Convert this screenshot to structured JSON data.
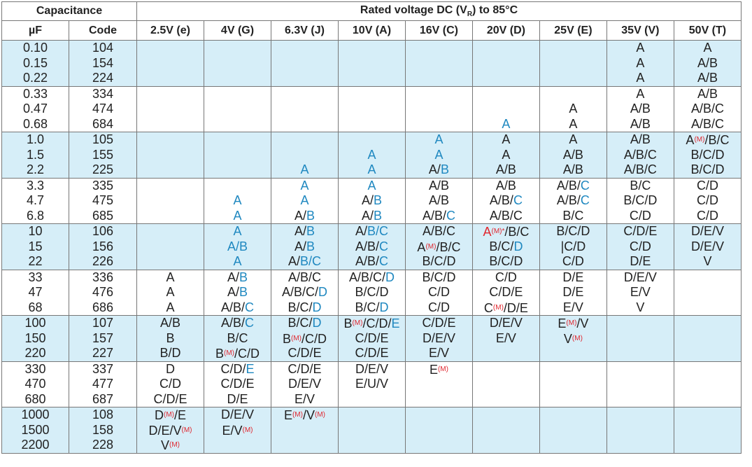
{
  "header": {
    "capacitance": "Capacitance",
    "rated": "Rated voltage DC (V",
    "rated_sub": "R",
    "rated_tail": ") to 85°C",
    "uf": "µF",
    "code": "Code",
    "voltages": [
      "2.5V (e)",
      "4V (G)",
      "6.3V (J)",
      "10V (A)",
      "16V (C)",
      "20V (D)",
      "25V (E)",
      "35V (V)",
      "50V (T)"
    ]
  },
  "colors": {
    "blue_text": "#1f88c0",
    "red_text": "#e0262e",
    "row_shade": "#d6eef8"
  },
  "groups": [
    {
      "shade": "blue",
      "uf": [
        "0.10",
        "0.15",
        "0.22"
      ],
      "code": [
        "104",
        "154",
        "224"
      ],
      "cells": [
        [],
        [],
        [],
        [],
        [],
        [],
        [],
        [
          [
            {
              "t": "A"
            }
          ],
          [
            {
              "t": "A"
            }
          ],
          [
            {
              "t": "A"
            }
          ]
        ],
        [
          [
            {
              "t": "A"
            }
          ],
          [
            {
              "t": "A/B"
            }
          ],
          [
            {
              "t": "A/B"
            }
          ]
        ]
      ]
    },
    {
      "shade": "white",
      "uf": [
        "0.33",
        "0.47",
        "0.68"
      ],
      "code": [
        "334",
        "474",
        "684"
      ],
      "cells": [
        [],
        [],
        [],
        [],
        [],
        [
          [],
          [],
          [
            {
              "t": "A",
              "c": "b"
            }
          ]
        ],
        [
          [],
          [
            {
              "t": "A"
            }
          ],
          [
            {
              "t": "A"
            }
          ]
        ],
        [
          [
            {
              "t": "A"
            }
          ],
          [
            {
              "t": "A/B"
            }
          ],
          [
            {
              "t": "A/B"
            }
          ]
        ],
        [
          [
            {
              "t": "A/B"
            }
          ],
          [
            {
              "t": "A/B/C"
            }
          ],
          [
            {
              "t": "A/B/C"
            }
          ]
        ]
      ]
    },
    {
      "shade": "blue",
      "uf": [
        "1.0",
        "1.5",
        "2.2"
      ],
      "code": [
        "105",
        "155",
        "225"
      ],
      "cells": [
        [],
        [],
        [
          [],
          [],
          [
            {
              "t": "A",
              "c": "b"
            }
          ]
        ],
        [
          [],
          [
            {
              "t": "A",
              "c": "b"
            }
          ],
          [
            {
              "t": "A",
              "c": "b"
            }
          ]
        ],
        [
          [
            {
              "t": "A",
              "c": "b"
            }
          ],
          [
            {
              "t": "A",
              "c": "b"
            }
          ],
          [
            {
              "t": "A/"
            },
            {
              "t": "B",
              "c": "b"
            }
          ]
        ],
        [
          [
            {
              "t": "A"
            }
          ],
          [
            {
              "t": "A"
            }
          ],
          [
            {
              "t": "A/B"
            }
          ]
        ],
        [
          [
            {
              "t": "A"
            }
          ],
          [
            {
              "t": "A/B"
            }
          ],
          [
            {
              "t": "A/B"
            }
          ]
        ],
        [
          [
            {
              "t": "A/B"
            }
          ],
          [
            {
              "t": "A/B/C"
            }
          ],
          [
            {
              "t": "A/B/C"
            }
          ]
        ],
        [
          [
            {
              "t": "A"
            },
            {
              "t": "(M)",
              "c": "m"
            },
            {
              "t": "/B/C"
            }
          ],
          [
            {
              "t": "B/C/D"
            }
          ],
          [
            {
              "t": "B/C/D"
            }
          ]
        ]
      ]
    },
    {
      "shade": "white",
      "uf": [
        "3.3",
        "4.7",
        "6.8"
      ],
      "code": [
        "335",
        "475",
        "685"
      ],
      "cells": [
        [],
        [
          [],
          [
            {
              "t": "A",
              "c": "b"
            }
          ],
          [
            {
              "t": "A",
              "c": "b"
            }
          ]
        ],
        [
          [
            {
              "t": "A",
              "c": "b"
            }
          ],
          [
            {
              "t": "A",
              "c": "b"
            }
          ],
          [
            {
              "t": "A/"
            },
            {
              "t": "B",
              "c": "b"
            }
          ]
        ],
        [
          [
            {
              "t": "A",
              "c": "b"
            }
          ],
          [
            {
              "t": "A/"
            },
            {
              "t": "B",
              "c": "b"
            }
          ],
          [
            {
              "t": "A/"
            },
            {
              "t": "B",
              "c": "b"
            }
          ]
        ],
        [
          [
            {
              "t": "A/B"
            }
          ],
          [
            {
              "t": "A/B"
            }
          ],
          [
            {
              "t": "A/B/"
            },
            {
              "t": "C",
              "c": "b"
            }
          ]
        ],
        [
          [
            {
              "t": "A/B"
            }
          ],
          [
            {
              "t": "A/B/"
            },
            {
              "t": "C",
              "c": "b"
            }
          ],
          [
            {
              "t": "A/B/C"
            }
          ]
        ],
        [
          [
            {
              "t": "A/B/"
            },
            {
              "t": "C",
              "c": "b"
            }
          ],
          [
            {
              "t": "A/B/"
            },
            {
              "t": "C",
              "c": "b"
            }
          ],
          [
            {
              "t": "B/C"
            }
          ]
        ],
        [
          [
            {
              "t": "B/C"
            }
          ],
          [
            {
              "t": "B/C/D"
            }
          ],
          [
            {
              "t": "C/D"
            }
          ]
        ],
        [
          [
            {
              "t": "C/D"
            }
          ],
          [
            {
              "t": "C/D"
            }
          ],
          [
            {
              "t": "C/D"
            }
          ]
        ]
      ]
    },
    {
      "shade": "blue",
      "uf": [
        "10",
        "15",
        "22"
      ],
      "code": [
        "106",
        "156",
        "226"
      ],
      "cells": [
        [],
        [
          [
            {
              "t": "A",
              "c": "b"
            }
          ],
          [
            {
              "t": "A/B",
              "c": "b"
            }
          ],
          [
            {
              "t": "A",
              "c": "b"
            }
          ]
        ],
        [
          [
            {
              "t": "A/"
            },
            {
              "t": "B",
              "c": "b"
            }
          ],
          [
            {
              "t": "A/"
            },
            {
              "t": "B",
              "c": "b"
            }
          ],
          [
            {
              "t": "A/"
            },
            {
              "t": "B/C",
              "c": "b"
            }
          ]
        ],
        [
          [
            {
              "t": "A/"
            },
            {
              "t": "B/C",
              "c": "b"
            }
          ],
          [
            {
              "t": "A/B/"
            },
            {
              "t": "C",
              "c": "b"
            }
          ],
          [
            {
              "t": "A/B/"
            },
            {
              "t": "C",
              "c": "b"
            }
          ]
        ],
        [
          [
            {
              "t": "A/B/C"
            }
          ],
          [
            {
              "t": "A"
            },
            {
              "t": "(M)",
              "c": "m"
            },
            {
              "t": "/B/C"
            }
          ],
          [
            {
              "t": "B/C/D"
            }
          ]
        ],
        [
          [
            {
              "t": "A",
              "c": "mc"
            },
            {
              "t": "(M)*",
              "c": "m"
            },
            {
              "t": "/B/C"
            }
          ],
          [
            {
              "t": "B/C/"
            },
            {
              "t": "D",
              "c": "b"
            }
          ],
          [
            {
              "t": "B/C/D"
            }
          ]
        ],
        [
          [
            {
              "t": "B/C/D"
            }
          ],
          [
            {
              "t": "|C/D"
            }
          ],
          [
            {
              "t": "C/D"
            }
          ]
        ],
        [
          [
            {
              "t": "C/D/E"
            }
          ],
          [
            {
              "t": "C/D"
            }
          ],
          [
            {
              "t": "D/E"
            }
          ]
        ],
        [
          [
            {
              "t": "D/E/V"
            }
          ],
          [
            {
              "t": "D/E/V"
            }
          ],
          [
            {
              "t": "V"
            }
          ]
        ]
      ]
    },
    {
      "shade": "white",
      "uf": [
        "33",
        "47",
        "68"
      ],
      "code": [
        "336",
        "476",
        "686"
      ],
      "cells": [
        [
          [
            {
              "t": "A"
            }
          ],
          [
            {
              "t": "A"
            }
          ],
          [
            {
              "t": "A"
            }
          ]
        ],
        [
          [
            {
              "t": "A/"
            },
            {
              "t": "B",
              "c": "b"
            }
          ],
          [
            {
              "t": "A/"
            },
            {
              "t": "B",
              "c": "b"
            }
          ],
          [
            {
              "t": "A/B/"
            },
            {
              "t": "C",
              "c": "b"
            }
          ]
        ],
        [
          [
            {
              "t": "A/B/C"
            }
          ],
          [
            {
              "t": "A/B/C/"
            },
            {
              "t": "D",
              "c": "b"
            }
          ],
          [
            {
              "t": "B/C/"
            },
            {
              "t": "D",
              "c": "b"
            }
          ]
        ],
        [
          [
            {
              "t": "A/B/C/"
            },
            {
              "t": "D",
              "c": "b"
            }
          ],
          [
            {
              "t": "B/C/D"
            }
          ],
          [
            {
              "t": "B/C/"
            },
            {
              "t": "D",
              "c": "b"
            }
          ]
        ],
        [
          [
            {
              "t": "B/C/D"
            }
          ],
          [
            {
              "t": "C/D"
            }
          ],
          [
            {
              "t": "C/D"
            }
          ]
        ],
        [
          [
            {
              "t": "C/D"
            }
          ],
          [
            {
              "t": "C/D/E"
            }
          ],
          [
            {
              "t": "C"
            },
            {
              "t": "(M)",
              "c": "m"
            },
            {
              "t": "/D/E"
            }
          ]
        ],
        [
          [
            {
              "t": "D/E"
            }
          ],
          [
            {
              "t": "D/E"
            }
          ],
          [
            {
              "t": "E/V"
            }
          ]
        ],
        [
          [
            {
              "t": "D/E/V"
            }
          ],
          [
            {
              "t": "E/V"
            }
          ],
          [
            {
              "t": "V"
            }
          ]
        ],
        []
      ]
    },
    {
      "shade": "blue",
      "uf": [
        "100",
        "150",
        "220"
      ],
      "code": [
        "107",
        "157",
        "227"
      ],
      "cells": [
        [
          [
            {
              "t": "A/B"
            }
          ],
          [
            {
              "t": "B"
            }
          ],
          [
            {
              "t": "B/D"
            }
          ]
        ],
        [
          [
            {
              "t": "A/B/"
            },
            {
              "t": "C",
              "c": "b"
            }
          ],
          [
            {
              "t": "B/C"
            }
          ],
          [
            {
              "t": "B"
            },
            {
              "t": "(M)",
              "c": "m"
            },
            {
              "t": "/C/D"
            }
          ]
        ],
        [
          [
            {
              "t": "B/C/"
            },
            {
              "t": "D",
              "c": "b"
            }
          ],
          [
            {
              "t": "B"
            },
            {
              "t": "(M)",
              "c": "m"
            },
            {
              "t": "/C/D"
            }
          ],
          [
            {
              "t": "C/D/E"
            }
          ]
        ],
        [
          [
            {
              "t": "B"
            },
            {
              "t": "(M)",
              "c": "m"
            },
            {
              "t": "/C/D/"
            },
            {
              "t": "E",
              "c": "b"
            }
          ],
          [
            {
              "t": "C/D/E"
            }
          ],
          [
            {
              "t": "C/D/E"
            }
          ]
        ],
        [
          [
            {
              "t": "C/D/E"
            }
          ],
          [
            {
              "t": "D/E/V"
            }
          ],
          [
            {
              "t": "E/V"
            }
          ]
        ],
        [
          [
            {
              "t": "D/E/V"
            }
          ],
          [
            {
              "t": "E/V"
            }
          ],
          []
        ],
        [
          [
            {
              "t": "E"
            },
            {
              "t": "(M)",
              "c": "m"
            },
            {
              "t": "/V"
            }
          ],
          [
            {
              "t": "V"
            },
            {
              "t": "(M)",
              "c": "m"
            }
          ],
          []
        ],
        [],
        []
      ]
    },
    {
      "shade": "white",
      "uf": [
        "330",
        "470",
        "680"
      ],
      "code": [
        "337",
        "477",
        "687"
      ],
      "cells": [
        [
          [
            {
              "t": "D"
            }
          ],
          [
            {
              "t": "C/D"
            }
          ],
          [
            {
              "t": "C/D/E"
            }
          ]
        ],
        [
          [
            {
              "t": "C/D/"
            },
            {
              "t": "E",
              "c": "b"
            }
          ],
          [
            {
              "t": "C/D/E"
            }
          ],
          [
            {
              "t": "D/E"
            }
          ]
        ],
        [
          [
            {
              "t": "C/D/E"
            }
          ],
          [
            {
              "t": "D/E/V"
            }
          ],
          [
            {
              "t": "E/V"
            }
          ]
        ],
        [
          [
            {
              "t": "D/E/V"
            }
          ],
          [
            {
              "t": "E/U/V"
            }
          ],
          []
        ],
        [
          [
            {
              "t": "E"
            },
            {
              "t": "(M)",
              "c": "m"
            }
          ],
          [],
          []
        ],
        [],
        [],
        [],
        []
      ]
    },
    {
      "shade": "blue",
      "uf": [
        "1000",
        "1500",
        "2200"
      ],
      "code": [
        "108",
        "158",
        "228"
      ],
      "cells": [
        [
          [
            {
              "t": "D"
            },
            {
              "t": "(M)",
              "c": "m"
            },
            {
              "t": "/E"
            }
          ],
          [
            {
              "t": "D/E/V"
            },
            {
              "t": "(M)",
              "c": "m"
            }
          ],
          [
            {
              "t": "V"
            },
            {
              "t": "(M)",
              "c": "m"
            }
          ]
        ],
        [
          [
            {
              "t": "D/E/V"
            }
          ],
          [
            {
              "t": "E/V"
            },
            {
              "t": "(M)",
              "c": "m"
            }
          ],
          []
        ],
        [
          [
            {
              "t": "E"
            },
            {
              "t": "(M)",
              "c": "m"
            },
            {
              "t": "/V"
            },
            {
              "t": "(M)",
              "c": "m"
            }
          ],
          [],
          []
        ],
        [],
        [],
        [],
        [],
        [],
        []
      ]
    }
  ]
}
